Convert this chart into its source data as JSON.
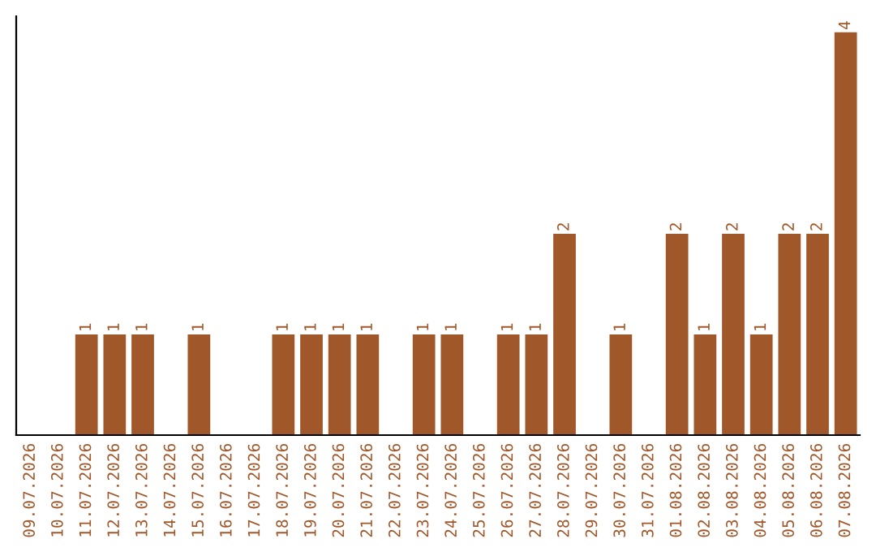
{
  "chart_data": {
    "type": "bar",
    "categories": [
      "09.07.2026",
      "10.07.2026",
      "11.07.2026",
      "12.07.2026",
      "13.07.2026",
      "14.07.2026",
      "15.07.2026",
      "16.07.2026",
      "17.07.2026",
      "18.07.2026",
      "19.07.2026",
      "20.07.2026",
      "21.07.2026",
      "22.07.2026",
      "23.07.2026",
      "24.07.2026",
      "25.07.2026",
      "26.07.2026",
      "27.07.2026",
      "28.07.2026",
      "29.07.2026",
      "30.07.2026",
      "31.07.2026",
      "01.08.2026",
      "02.08.2026",
      "03.08.2026",
      "04.08.2026",
      "05.08.2026",
      "06.08.2026",
      "07.08.2026"
    ],
    "values": [
      0,
      0,
      1,
      1,
      1,
      0,
      1,
      0,
      0,
      1,
      1,
      1,
      1,
      0,
      1,
      1,
      0,
      1,
      1,
      2,
      0,
      1,
      0,
      2,
      1,
      2,
      1,
      2,
      2,
      4
    ],
    "value_labels": [
      null,
      null,
      "1",
      "1",
      "1",
      null,
      "1",
      null,
      null,
      "1",
      "1",
      "1",
      "1",
      null,
      "1",
      "1",
      null,
      "1",
      "1",
      "2",
      null,
      "1",
      null,
      "2",
      "1",
      "2",
      "1",
      "2",
      "2",
      "4"
    ],
    "color": "#a0582a",
    "ylim": [
      0,
      4.16
    ],
    "tick_labels": "x",
    "grid": false,
    "legend": false
  }
}
